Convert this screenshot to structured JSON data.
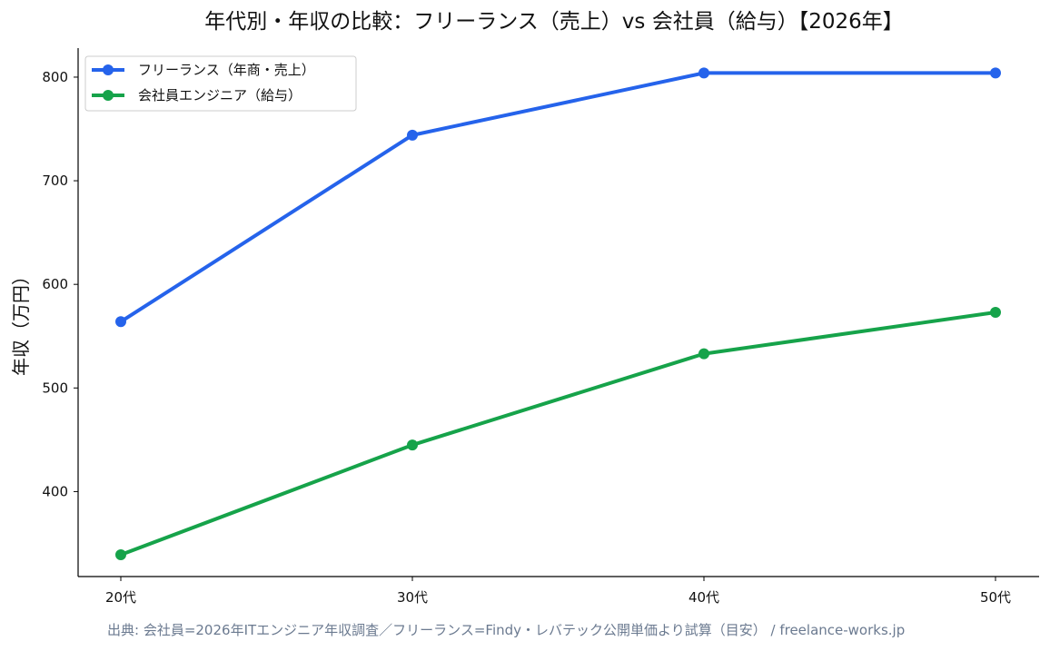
{
  "chart_data": {
    "type": "line",
    "title": "年代別・年収の比較：フリーランス（売上）vs 会社員（給与）【2026年】",
    "xlabel": "",
    "ylabel": "年収（万円）",
    "categories": [
      "20代",
      "30代",
      "40代",
      "50代"
    ],
    "ylim": [
      318,
      828
    ],
    "yticks": [
      400,
      500,
      600,
      700,
      800
    ],
    "grid": false,
    "legend_position": "top-left",
    "series": [
      {
        "name": "フリーランス（年商・売上）",
        "color": "#2563eb",
        "values": [
          564,
          744,
          804,
          804
        ]
      },
      {
        "name": "会社員エンジニア（給与）",
        "color": "#16a34a",
        "values": [
          339,
          445,
          533,
          573
        ]
      }
    ]
  },
  "footer": {
    "source": "出典: 会社員=2026年ITエンジニア年収調査／フリーランス=Findy・レバテック公開単価より試算（目安） / freelance-works.jp"
  }
}
